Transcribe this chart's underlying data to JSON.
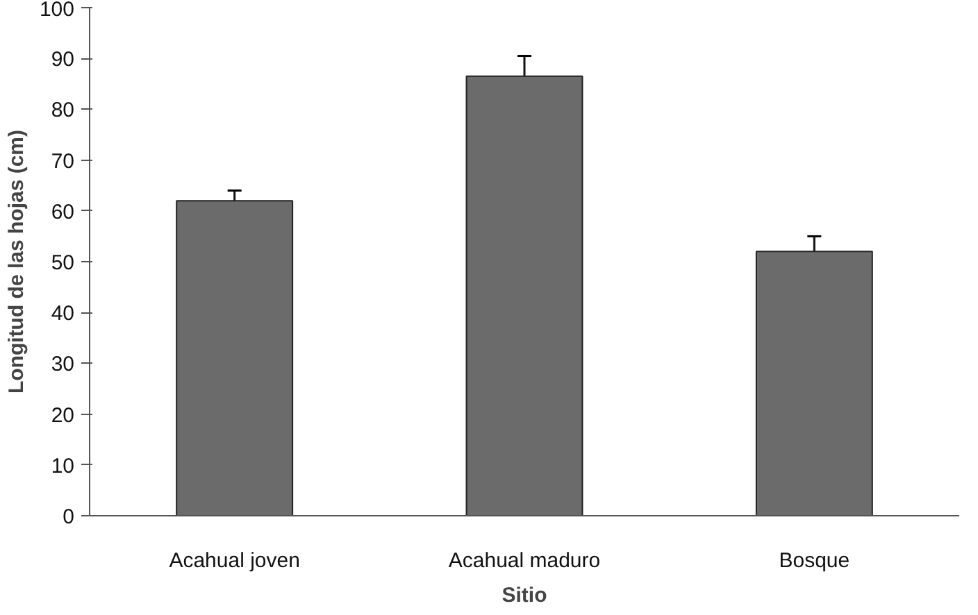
{
  "chart_data": {
    "type": "bar",
    "xlabel": "Sitio",
    "ylabel": "Longitud de las hojas (cm)",
    "categories": [
      "Acahual joven",
      "Acahual maduro",
      "Bosque"
    ],
    "values": [
      62,
      86.5,
      52
    ],
    "errors": [
      2,
      4,
      3
    ],
    "color": "#6b6b6b",
    "ylim": [
      0,
      100
    ],
    "yticks": [
      0,
      10,
      20,
      30,
      40,
      50,
      60,
      70,
      80,
      90,
      100
    ],
    "grid": false
  }
}
